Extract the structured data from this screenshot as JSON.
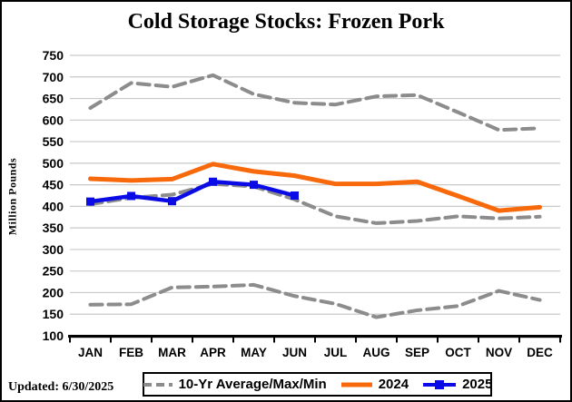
{
  "title": "Cold Storage Stocks: Frozen Pork",
  "updated_note": "Updated: 6/30/2025",
  "colors": {
    "gray": "#8C8C8C",
    "orange": "#F8690B",
    "blue": "#0B0BE6",
    "gridline": "#C9C9C9",
    "axis": "#000000"
  },
  "chart_data": {
    "type": "line",
    "title": "Cold Storage Stocks: Frozen Pork",
    "xlabel": "",
    "ylabel": "Million Pounds",
    "ylim": [
      100,
      750
    ],
    "ytick_step": 50,
    "grid": true,
    "legend_position": "bottom",
    "categories": [
      "JAN",
      "FEB",
      "MAR",
      "APR",
      "MAY",
      "JUN",
      "JUL",
      "AUG",
      "SEP",
      "OCT",
      "NOV",
      "DEC"
    ],
    "series": [
      {
        "id": "max10yr",
        "name": "10-Yr Max",
        "color": "#8C8C8C",
        "width": 4,
        "dash": "13 7",
        "markers": false,
        "values": [
          628,
          686,
          677,
          704,
          660,
          640,
          636,
          655,
          658,
          618,
          577,
          581
        ]
      },
      {
        "id": "avg10yr",
        "name": "10-Yr Average",
        "color": "#8C8C8C",
        "width": 4,
        "dash": "13 7",
        "markers": false,
        "values": [
          405,
          420,
          427,
          452,
          446,
          416,
          377,
          361,
          366,
          377,
          372,
          376
        ]
      },
      {
        "id": "min10yr",
        "name": "10-Yr Min",
        "color": "#8C8C8C",
        "width": 4,
        "dash": "13 7",
        "markers": false,
        "values": [
          172,
          173,
          212,
          214,
          218,
          192,
          174,
          143,
          159,
          169,
          204,
          183
        ]
      },
      {
        "id": "y2024",
        "name": "2024",
        "color": "#F8690B",
        "width": 5,
        "dash": null,
        "markers": false,
        "values": [
          464,
          460,
          463,
          498,
          481,
          471,
          452,
          452,
          457,
          424,
          390,
          398
        ]
      },
      {
        "id": "y2025",
        "name": "2025",
        "color": "#0B0BE6",
        "width": 4.5,
        "dash": null,
        "markers": true,
        "values": [
          411,
          424,
          412,
          457,
          450,
          425,
          null,
          null,
          null,
          null,
          null,
          null
        ]
      }
    ],
    "legend": [
      {
        "label": "10-Yr Average/Max/Min",
        "swatch": "gray-dashed-line"
      },
      {
        "label": "2024",
        "swatch": "orange-solid-line"
      },
      {
        "label": "2025",
        "swatch": "blue-line-square-marker"
      }
    ]
  }
}
